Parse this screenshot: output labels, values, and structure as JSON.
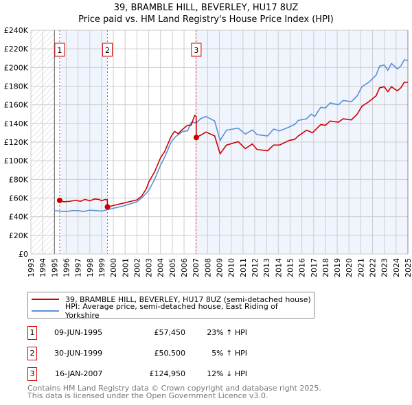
{
  "chart_data": {
    "type": "line",
    "title": "39, BRAMBLE HILL, BEVERLEY, HU17 8UZ",
    "subtitle": "Price paid vs. HM Land Registry's House Price Index (HPI)",
    "xlim": [
      1993,
      2025
    ],
    "ylim": [
      0,
      240000
    ],
    "x_ticks": [
      "1993",
      "1994",
      "1995",
      "1996",
      "1997",
      "1998",
      "1999",
      "2000",
      "2001",
      "2002",
      "2003",
      "2004",
      "2005",
      "2006",
      "2007",
      "2008",
      "2009",
      "2010",
      "2011",
      "2012",
      "2013",
      "2014",
      "2015",
      "2016",
      "2017",
      "2018",
      "2019",
      "2020",
      "2021",
      "2022",
      "2023",
      "2024",
      "2025"
    ],
    "y_ticks": [
      {
        "v": 0,
        "label": "£0"
      },
      {
        "v": 20000,
        "label": "£20K"
      },
      {
        "v": 40000,
        "label": "£40K"
      },
      {
        "v": 60000,
        "label": "£60K"
      },
      {
        "v": 80000,
        "label": "£80K"
      },
      {
        "v": 100000,
        "label": "£100K"
      },
      {
        "v": 120000,
        "label": "£120K"
      },
      {
        "v": 140000,
        "label": "£140K"
      },
      {
        "v": 160000,
        "label": "£160K"
      },
      {
        "v": 180000,
        "label": "£180K"
      },
      {
        "v": 200000,
        "label": "£200K"
      },
      {
        "v": 220000,
        "label": "£220K"
      },
      {
        "v": 240000,
        "label": "£240K"
      }
    ],
    "grid": true,
    "series": [
      {
        "name": "39, BRAMBLE HILL, BEVERLEY, HU17 8UZ (semi-detached house)",
        "color": "#cc0000",
        "x": [
          1995.44,
          1995.8,
          1996.3,
          1996.8,
          1997.2,
          1997.6,
          1998.0,
          1998.4,
          1998.8,
          1999.0,
          1999.3,
          1999.49,
          1999.5,
          2000.0,
          2000.5,
          2001.0,
          2001.5,
          2002.0,
          2002.4,
          2002.8,
          2003.0,
          2003.5,
          2004.0,
          2004.36,
          2004.9,
          2005.2,
          2005.5,
          2005.9,
          2006.3,
          2006.6,
          2006.9,
          2007.03,
          2007.04,
          2007.5,
          2007.86,
          2008.6,
          2009.06,
          2009.6,
          2010.6,
          2011.2,
          2011.8,
          2012.2,
          2013.1,
          2013.6,
          2014.1,
          2014.9,
          2015.4,
          2015.7,
          2016.4,
          2016.9,
          2017.6,
          2018.0,
          2018.4,
          2019.1,
          2019.5,
          2020.2,
          2020.7,
          2021.1,
          2021.7,
          2022.3,
          2022.6,
          2023.0,
          2023.3,
          2023.6,
          2024.1,
          2024.4,
          2024.7,
          2025.0
        ],
        "y": [
          57450,
          56000,
          56500,
          57500,
          56500,
          58500,
          57000,
          59000,
          58500,
          57000,
          58500,
          58000,
          50500,
          52000,
          53500,
          55000,
          56500,
          58000,
          62000,
          70000,
          77000,
          88000,
          103000,
          110000,
          126000,
          131500,
          129000,
          134000,
          138000,
          138000,
          148700,
          147500,
          124950,
          128000,
          130800,
          126600,
          107500,
          116800,
          120500,
          113000,
          118000,
          112000,
          110700,
          116800,
          116800,
          121700,
          123000,
          126600,
          132800,
          130000,
          138800,
          138000,
          142600,
          141300,
          145000,
          143800,
          150000,
          158500,
          163400,
          169600,
          178200,
          179400,
          174000,
          179400,
          175000,
          178200,
          184300,
          184000
        ]
      },
      {
        "name": "HPI: Average price, semi-detached house, East Riding of Yorkshire",
        "color": "#5b8fd6",
        "x": [
          1995.0,
          1995.5,
          1996.0,
          1996.5,
          1997.0,
          1997.5,
          1998.0,
          1998.5,
          1999.0,
          1999.5,
          2000.0,
          2001.0,
          2002.0,
          2002.4,
          2003.0,
          2003.5,
          2004.0,
          2004.36,
          2004.9,
          2005.3,
          2005.9,
          2006.3,
          2006.6,
          2007.08,
          2007.4,
          2007.86,
          2008.6,
          2009.06,
          2009.6,
          2010.6,
          2011.2,
          2011.8,
          2012.2,
          2013.1,
          2013.6,
          2014.1,
          2014.9,
          2015.4,
          2015.7,
          2016.4,
          2016.8,
          2017.1,
          2017.6,
          2018.0,
          2018.4,
          2019.1,
          2019.5,
          2020.2,
          2020.7,
          2021.1,
          2021.7,
          2022.3,
          2022.6,
          2023.0,
          2023.3,
          2023.6,
          2024.1,
          2024.4,
          2024.7,
          2025.0
        ],
        "y": [
          46500,
          46000,
          45500,
          46500,
          46500,
          45500,
          47000,
          46500,
          46000,
          47500,
          49000,
          52000,
          56000,
          60000,
          68000,
          80000,
          95000,
          104000,
          120000,
          126000,
          131500,
          132000,
          141000,
          141000,
          145000,
          147500,
          142600,
          121700,
          132800,
          135000,
          128600,
          133000,
          128000,
          126600,
          134000,
          132000,
          136000,
          139000,
          143300,
          145000,
          150000,
          147500,
          157300,
          156600,
          162000,
          160000,
          164700,
          163400,
          169600,
          179400,
          184300,
          191700,
          201500,
          202700,
          197000,
          204400,
          198500,
          201500,
          208300,
          207600
        ]
      }
    ],
    "sales": [
      {
        "n": "1",
        "x": 1995.44,
        "y": 57450
      },
      {
        "n": "2",
        "x": 1999.5,
        "y": 50500
      },
      {
        "n": "3",
        "x": 2007.04,
        "y": 124950
      }
    ],
    "legend_placement": "below"
  },
  "header": {
    "title": "39, BRAMBLE HILL, BEVERLEY, HU17 8UZ",
    "subtitle": "Price paid vs. HM Land Registry's House Price Index (HPI)"
  },
  "legend": {
    "property": "39, BRAMBLE HILL, BEVERLEY, HU17 8UZ (semi-detached house)",
    "hpi": "HPI: Average price, semi-detached house, East Riding of Yorkshire"
  },
  "transactions": [
    {
      "n": "1",
      "date": "09-JUN-1995",
      "price": "£57,450",
      "delta": "23% ↑ HPI"
    },
    {
      "n": "2",
      "date": "30-JUN-1999",
      "price": "£50,500",
      "delta": "5% ↑ HPI"
    },
    {
      "n": "3",
      "date": "16-JAN-2007",
      "price": "£124,950",
      "delta": "12% ↓ HPI"
    }
  ],
  "footer": {
    "line1": "Contains HM Land Registry data © Crown copyright and database right 2025.",
    "line2": "This data is licensed under the Open Government Licence v3.0."
  }
}
